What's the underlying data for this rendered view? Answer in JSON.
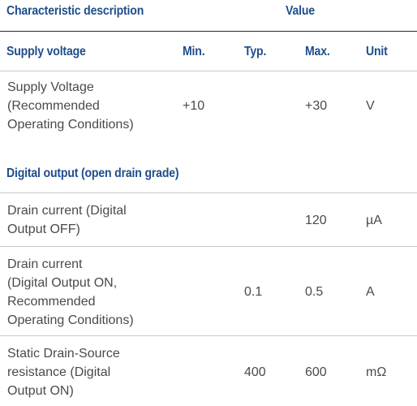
{
  "table": {
    "header": {
      "characteristic": "Characteristic description",
      "value": "Value"
    },
    "sections": [
      {
        "title": "Supply voltage",
        "columns": {
          "min": "Min.",
          "typ": "Typ.",
          "max": "Max.",
          "unit": "Unit"
        },
        "rows": [
          {
            "lines": [
              "Supply Voltage",
              "(Recommended",
              "Operating Conditions)"
            ],
            "min": "+10",
            "typ": "",
            "max": "+30",
            "unit": "V"
          }
        ]
      },
      {
        "title": "Digital output (open drain grade)",
        "rows": [
          {
            "lines": [
              "Drain current (Digital",
              "Output OFF)"
            ],
            "min": "",
            "typ": "",
            "max": "120",
            "unit": "µA"
          },
          {
            "lines": [
              "Drain current",
              "(Digital Output ON,",
              "Recommended",
              "Operating Conditions)"
            ],
            "min": "",
            "typ": "0.1",
            "max": "0.5",
            "unit": "A"
          },
          {
            "lines": [
              "Static Drain-Source",
              "resistance (Digital",
              "Output ON)"
            ],
            "min": "",
            "typ": "400",
            "max": "600",
            "unit": "mΩ"
          }
        ]
      }
    ]
  }
}
